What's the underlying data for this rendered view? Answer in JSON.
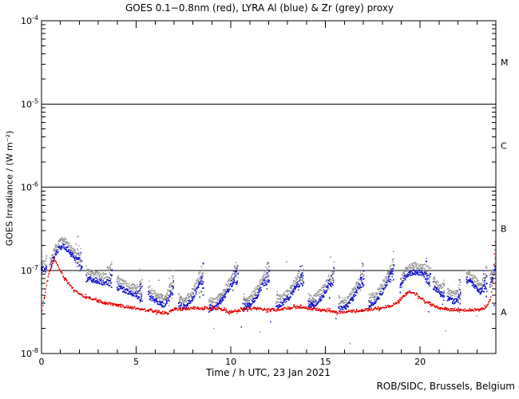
{
  "chart_data": {
    "type": "scatter",
    "title": "GOES 0.1−0.8nm (red), LYRA Al (blue) & Zr (grey) proxy",
    "xlabel": "Time / h UTC, 23 Jan 2021",
    "ylabel": "GOES Irradiance / (W m⁻²)",
    "footer": "ROB/SIDC, Brussels, Belgium",
    "xlim": [
      0,
      24
    ],
    "x_major_ticks": [
      0,
      5,
      10,
      15,
      20
    ],
    "x_minor_step_h": 1,
    "y_scale": "log10",
    "y_unit": "W m^-2",
    "y_tick_exponents": [
      -4,
      -5,
      -6,
      -7,
      -8
    ],
    "hline_levels_exp": [
      -5,
      -6,
      -7
    ],
    "grid": "off",
    "flare_classes": [
      {
        "label": "M",
        "mid_exponent": -4.5
      },
      {
        "label": "C",
        "mid_exponent": -5.5
      },
      {
        "label": "B",
        "mid_exponent": -6.5
      },
      {
        "label": "A",
        "mid_exponent": -7.5
      }
    ],
    "series": [
      {
        "name": "GOES 0.1-0.8nm",
        "color": "#e60000",
        "style": "dotted-line",
        "points_h_log10flux": [
          [
            0,
            -7.52
          ],
          [
            0.12,
            -7.35
          ],
          [
            0.25,
            -7.18
          ],
          [
            0.4,
            -7.03
          ],
          [
            0.55,
            -6.93
          ],
          [
            0.68,
            -6.88
          ],
          [
            0.8,
            -6.91
          ],
          [
            1,
            -7.01
          ],
          [
            1.2,
            -7.09
          ],
          [
            1.5,
            -7.18
          ],
          [
            1.8,
            -7.25
          ],
          [
            2.2,
            -7.31
          ],
          [
            2.6,
            -7.34
          ],
          [
            3,
            -7.37
          ],
          [
            3.5,
            -7.4
          ],
          [
            4,
            -7.42
          ],
          [
            4.5,
            -7.44
          ],
          [
            5,
            -7.46
          ],
          [
            5.5,
            -7.48
          ],
          [
            6,
            -7.49
          ],
          [
            6.6,
            -7.52
          ],
          [
            7.1,
            -7.46
          ],
          [
            7.5,
            -7.47
          ],
          [
            8,
            -7.45
          ],
          [
            8.5,
            -7.46
          ],
          [
            9,
            -7.45
          ],
          [
            9.5,
            -7.47
          ],
          [
            9.9,
            -7.5
          ],
          [
            10.4,
            -7.48
          ],
          [
            10.9,
            -7.46
          ],
          [
            11.4,
            -7.46
          ],
          [
            11.9,
            -7.47
          ],
          [
            12.4,
            -7.48
          ],
          [
            12.9,
            -7.46
          ],
          [
            13.4,
            -7.44
          ],
          [
            13.9,
            -7.45
          ],
          [
            14.4,
            -7.46
          ],
          [
            14.9,
            -7.48
          ],
          [
            15.4,
            -7.5
          ],
          [
            15.9,
            -7.5
          ],
          [
            16.4,
            -7.49
          ],
          [
            16.9,
            -7.48
          ],
          [
            17.4,
            -7.47
          ],
          [
            17.9,
            -7.45
          ],
          [
            18.4,
            -7.43
          ],
          [
            18.75,
            -7.39
          ],
          [
            19.05,
            -7.33
          ],
          [
            19.3,
            -7.28
          ],
          [
            19.55,
            -7.26
          ],
          [
            19.8,
            -7.29
          ],
          [
            20.1,
            -7.34
          ],
          [
            20.5,
            -7.4
          ],
          [
            21,
            -7.45
          ],
          [
            21.5,
            -7.47
          ],
          [
            22,
            -7.48
          ],
          [
            22.5,
            -7.48
          ],
          [
            23,
            -7.47
          ],
          [
            23.35,
            -7.46
          ],
          [
            23.6,
            -7.41
          ],
          [
            23.75,
            -7.32
          ],
          [
            23.85,
            -7.12
          ],
          [
            23.92,
            -6.88
          ],
          [
            23.97,
            -6.65
          ],
          [
            24,
            -6.48
          ]
        ]
      },
      {
        "name": "LYRA Al proxy",
        "color": "#1a1acc",
        "style": "scatter-band",
        "offset_log10": 0,
        "segments_h_log10flux": [
          [
            [
              0,
              -7.0
            ],
            [
              0.15,
              -6.98
            ],
            [
              0.3,
              -7.0
            ]
          ],
          [
            [
              0.45,
              -6.97
            ],
            [
              0.7,
              -6.82
            ],
            [
              0.95,
              -6.73
            ],
            [
              1.2,
              -6.71
            ],
            [
              1.45,
              -6.77
            ],
            [
              1.7,
              -6.84
            ],
            [
              1.95,
              -6.91
            ],
            [
              2.15,
              -6.96
            ]
          ],
          [
            [
              2.38,
              -7.09
            ],
            [
              2.7,
              -7.11
            ],
            [
              3,
              -7.13
            ],
            [
              3.3,
              -7.15
            ],
            [
              3.55,
              -7.12
            ],
            [
              3.75,
              -7.08
            ]
          ],
          [
            [
              4,
              -7.19
            ],
            [
              4.4,
              -7.24
            ],
            [
              4.8,
              -7.28
            ],
            [
              5.1,
              -7.3
            ],
            [
              5.35,
              -7.28
            ]
          ],
          [
            [
              5.65,
              -7.3
            ],
            [
              6.1,
              -7.38
            ],
            [
              6.5,
              -7.42
            ],
            [
              6.85,
              -7.28
            ],
            [
              7,
              -7.2
            ]
          ],
          [
            [
              7.25,
              -7.42
            ],
            [
              7.6,
              -7.44
            ],
            [
              8,
              -7.33
            ],
            [
              8.3,
              -7.18
            ],
            [
              8.55,
              -7.12
            ]
          ],
          [
            [
              8.85,
              -7.46
            ],
            [
              9.2,
              -7.44
            ],
            [
              9.6,
              -7.34
            ],
            [
              9.95,
              -7.2
            ],
            [
              10.25,
              -7.08
            ],
            [
              10.4,
              -7.12
            ]
          ],
          [
            [
              10.65,
              -7.45
            ],
            [
              11,
              -7.42
            ],
            [
              11.4,
              -7.3
            ],
            [
              11.75,
              -7.15
            ],
            [
              12.05,
              -7.05
            ]
          ],
          [
            [
              12.4,
              -7.42
            ],
            [
              12.75,
              -7.4
            ],
            [
              13.1,
              -7.32
            ],
            [
              13.5,
              -7.18
            ],
            [
              13.85,
              -7.08
            ]
          ],
          [
            [
              14.1,
              -7.42
            ],
            [
              14.5,
              -7.4
            ],
            [
              14.9,
              -7.3
            ],
            [
              15.2,
              -7.16
            ],
            [
              15.45,
              -7.08
            ]
          ],
          [
            [
              15.7,
              -7.46
            ],
            [
              16.1,
              -7.43
            ],
            [
              16.5,
              -7.32
            ],
            [
              16.8,
              -7.18
            ],
            [
              17.05,
              -7.08
            ]
          ],
          [
            [
              17.3,
              -7.42
            ],
            [
              17.7,
              -7.36
            ],
            [
              18.1,
              -7.22
            ],
            [
              18.4,
              -7.08
            ],
            [
              18.65,
              -7.0
            ]
          ],
          [
            [
              18.95,
              -7.22
            ],
            [
              19.15,
              -7.1
            ],
            [
              19.4,
              -7.04
            ],
            [
              19.7,
              -7.02
            ],
            [
              20,
              -7.03
            ],
            [
              20.3,
              -7.07
            ],
            [
              20.55,
              -7.14
            ]
          ],
          [
            [
              20.7,
              -7.18
            ],
            [
              21,
              -7.27
            ],
            [
              21.3,
              -7.31
            ]
          ],
          [
            [
              21.45,
              -7.31
            ],
            [
              21.8,
              -7.38
            ],
            [
              22.15,
              -7.31
            ]
          ],
          [
            [
              22.45,
              -7.12
            ],
            [
              22.8,
              -7.16
            ],
            [
              23.15,
              -7.26
            ],
            [
              23.4,
              -7.2
            ],
            [
              23.55,
              -7.12
            ]
          ],
          [
            [
              23.7,
              -7.16
            ],
            [
              23.85,
              -7.08
            ],
            [
              24,
              -6.95
            ]
          ]
        ],
        "outliers_h_log10flux": [
          [
            2.55,
            -7.32
          ],
          [
            10.55,
            -7.68
          ],
          [
            12.1,
            -7.62
          ],
          [
            15.55,
            -7.58
          ],
          [
            20.45,
            -7.5
          ],
          [
            23.9,
            -7.42
          ]
        ]
      },
      {
        "name": "LYRA Zr proxy",
        "color": "#9c9c9c",
        "style": "scatter-band",
        "derived_from": "LYRA Al proxy",
        "offset_log10": 0.08,
        "outliers_h_log10flux": [
          [
            6.2,
            -7.12
          ],
          [
            9.1,
            -7.7
          ],
          [
            11.55,
            -7.74
          ],
          [
            12.95,
            -6.9
          ],
          [
            16.3,
            -7.88
          ],
          [
            21.35,
            -7.73
          ],
          [
            23,
            -7.55
          ]
        ]
      }
    ]
  }
}
